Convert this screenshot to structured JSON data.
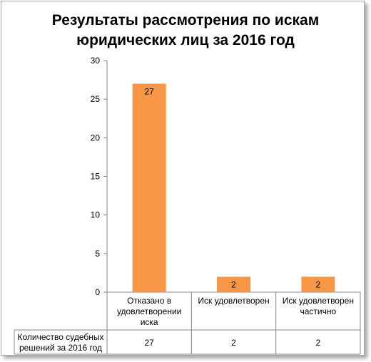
{
  "chart_data": {
    "type": "bar",
    "title_lines": [
      "Результаты рассмотрения по искам",
      "юридических лиц за 2016 год"
    ],
    "categories": [
      [
        "Отказано в",
        "удовлетворении",
        "иска"
      ],
      [
        "Иск удовлетворен"
      ],
      [
        "Иск удовлетворен",
        "частично"
      ]
    ],
    "series": [
      {
        "name_lines": [
          "Количество судебных",
          "решений за 2016 год"
        ],
        "values": [
          27,
          2,
          2
        ],
        "color": "#f79646"
      }
    ],
    "ylim": [
      0,
      30
    ],
    "yticks": [
      0,
      5,
      10,
      15,
      20,
      25,
      30
    ],
    "grid": false,
    "data_table": true,
    "legend": "data-table"
  }
}
